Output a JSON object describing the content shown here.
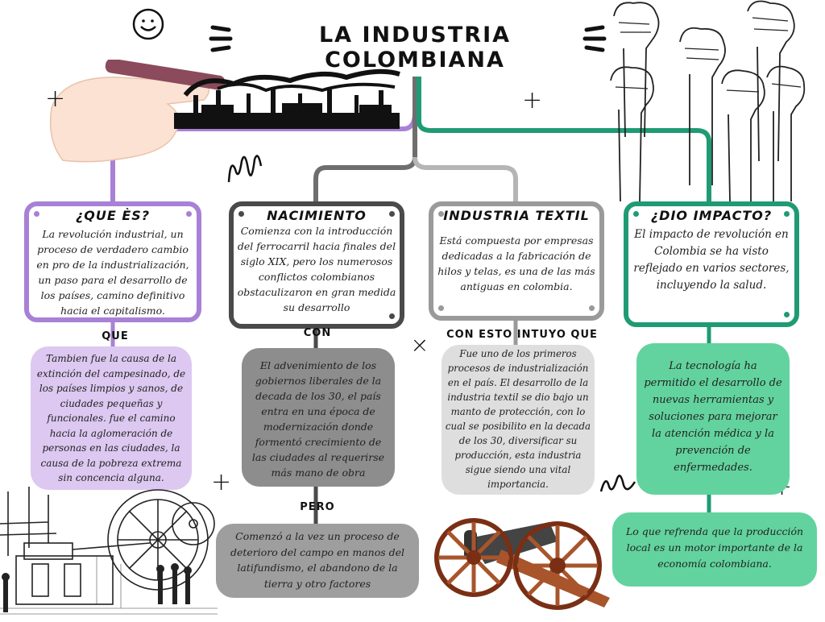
{
  "title": "LA INDUSTRIA COLOMBIANA",
  "colors": {
    "purple": "#a881d6",
    "dark_gray": "#4a4a4a",
    "gray": "#9a9a9a",
    "green": "#1f9b74",
    "light_purple": "#dcc8f0",
    "bubble_gray": "#8d8d8d",
    "bubble_light": "#dedede",
    "bubble_green": "#62d39e"
  },
  "cards": [
    {
      "heading": "¿QUE ÈS?",
      "text": "La revolución industrial, un proceso de verdadero cambio en pro de la industrialización, un paso para el desarrollo de los países, camino definitivo hacia el capitalismo."
    },
    {
      "heading": "NACIMIENTO",
      "text": "Comienza con la introducción del ferrocarril hacia finales del siglo XIX, pero los numerosos conflictos colombianos obstaculizaron en gran medida su desarrollo"
    },
    {
      "heading": "INDUSTRIA TEXTIL",
      "text": "Está compuesta por empresas dedicadas a la fabricación de hilos y telas, es una de las más antiguas en colombia."
    },
    {
      "heading": "¿DIO IMPACTO?",
      "text": "El impacto de revolución en Colombia se ha visto reflejado en varios sectores, incluyendo la salud."
    }
  ],
  "connectors": {
    "que": "QUE",
    "con": "CON",
    "con_esto": "CON ESTO INTUYO QUE",
    "pero": "PERO"
  },
  "bubbles": {
    "purple": "Tambien fue la causa de la extinción del campesinado, de los países limpios y sanos, de ciudades pequeñas y funcionales. fue el camino hacia la aglomeración de personas en las ciudades, la causa de la pobreza extrema sin concencia alguna.",
    "gray": "El advenimiento de los gobiernos liberales de la decada de los 30, el país entra en una época de modernización donde formentó crecimiento de las ciudades al requerirse más mano de obra",
    "textil": "Fue uno de los primeros procesos de industrialización en el país. El desarrollo de la industria textil se dio bajo un manto de protección, con lo cual se posibilito en la decada de los 30, diversificar su producción, esta industria sigue siendo una vital importancia.",
    "green": "La tecnología ha permitido el desarrollo de nuevas herramientas y soluciones para mejorar la atención médica y la prevención de enfermedades.",
    "pero": "Comenzó a la vez un proceso de deterioro del campo en manos del latifundismo, el abandono de la tierra y otro factores",
    "green2": "Lo que refrenda que la producción local es un motor importante de la economía colombiana."
  },
  "icons": [
    "smiley-icon",
    "hand-pen-icon",
    "factory-skyline-icon",
    "raised-fists-icon",
    "steam-engine-icon",
    "cannon-icon",
    "plus-icon",
    "scribble-icon"
  ]
}
